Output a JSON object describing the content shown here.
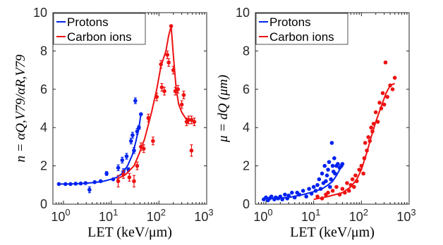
{
  "colors": {
    "protons": "#0022ee",
    "carbon": "#ee1111",
    "axis": "#262626"
  },
  "chart_data": [
    {
      "type": "scatter",
      "panel": "left",
      "xscale": "log",
      "xlim": [
        0.6,
        1000
      ],
      "ylim": [
        0,
        10
      ],
      "xticks": [
        1,
        10,
        100,
        1000
      ],
      "xtick_labels": [
        {
          "base": "10",
          "exp": "0"
        },
        {
          "base": "10",
          "exp": "1"
        },
        {
          "base": "10",
          "exp": "2"
        },
        {
          "base": "10",
          "exp": "3"
        }
      ],
      "yticks": [
        0,
        2,
        4,
        6,
        8,
        10
      ],
      "xlabel": "LET (keV/μm)",
      "ylabel": "n = αQ,V79/αR,V79",
      "legend_position": "top-left",
      "series": [
        {
          "name": "Protons",
          "color": "protons",
          "line": [
            [
              0.8,
              1.05
            ],
            [
              1.1,
              1.05
            ],
            [
              1.5,
              1.06
            ],
            [
              2,
              1.07
            ],
            [
              2.5,
              1.08
            ],
            [
              3,
              1.1
            ],
            [
              4,
              1.12
            ],
            [
              5,
              1.15
            ],
            [
              7,
              1.2
            ],
            [
              10,
              1.3
            ],
            [
              13,
              1.4
            ],
            [
              17,
              1.6
            ],
            [
              22,
              2.0
            ],
            [
              28,
              2.6
            ],
            [
              33,
              3.3
            ],
            [
              38,
              4.0
            ],
            [
              42,
              4.7
            ]
          ],
          "points": [
            [
              0.8,
              1.05,
              0
            ],
            [
              1.1,
              1.05,
              0
            ],
            [
              1.4,
              1.05,
              0
            ],
            [
              1.8,
              1.07,
              0
            ],
            [
              2.3,
              1.08,
              0
            ],
            [
              2.9,
              1.1,
              0
            ],
            [
              3.5,
              0.75,
              0.15
            ],
            [
              4.5,
              1.15,
              0
            ],
            [
              6,
              1.2,
              0
            ],
            [
              8,
              1.6,
              0.1
            ],
            [
              11,
              1.3,
              0
            ],
            [
              14,
              1.9,
              0.15
            ],
            [
              17,
              2.3,
              0.15
            ],
            [
              18,
              1.7,
              0.15
            ],
            [
              21,
              2.5,
              0.15
            ],
            [
              23,
              1.8,
              0.1
            ],
            [
              26,
              3.3,
              0.15
            ],
            [
              28,
              3.6,
              0.15
            ],
            [
              30,
              2.8,
              0.15
            ],
            [
              32,
              5.4,
              0.15
            ],
            [
              35,
              3.8,
              0.15
            ],
            [
              38,
              4.0,
              0.1
            ],
            [
              42,
              4.7,
              0
            ]
          ]
        },
        {
          "name": "Carbon ions",
          "color": "carbon",
          "line": [
            [
              13,
              1.3
            ],
            [
              20,
              1.55
            ],
            [
              30,
              2.0
            ],
            [
              38,
              2.6
            ],
            [
              50,
              3.4
            ],
            [
              70,
              4.8
            ],
            [
              90,
              6.0
            ],
            [
              110,
              7.2
            ],
            [
              140,
              8.0
            ],
            [
              160,
              8.8
            ],
            [
              180,
              9.3
            ],
            [
              200,
              7.8
            ],
            [
              230,
              6.0
            ],
            [
              260,
              5.2
            ],
            [
              300,
              4.8
            ],
            [
              380,
              4.4
            ],
            [
              480,
              4.4
            ],
            [
              560,
              4.3
            ]
          ],
          "points": [
            [
              14,
              1.2,
              0.3
            ],
            [
              18,
              1.55,
              0.2
            ],
            [
              24,
              1.4,
              0.2
            ],
            [
              30,
              1.2,
              0.3
            ],
            [
              35,
              2.0,
              0.2
            ],
            [
              42,
              3.0,
              0.2
            ],
            [
              48,
              2.9,
              0.2
            ],
            [
              60,
              4.5,
              0.2
            ],
            [
              75,
              3.3,
              0.2
            ],
            [
              90,
              5.6,
              0.2
            ],
            [
              110,
              7.3,
              0.2
            ],
            [
              115,
              6.1,
              0.2
            ],
            [
              130,
              5.9,
              0.2
            ],
            [
              150,
              7.8,
              0.2
            ],
            [
              160,
              7.4,
              0.2
            ],
            [
              180,
              9.3,
              0
            ],
            [
              200,
              7.0,
              0.2
            ],
            [
              220,
              5.9,
              0.2
            ],
            [
              250,
              6.0,
              0.2
            ],
            [
              300,
              5.2,
              0.2
            ],
            [
              330,
              5.7,
              0.2
            ],
            [
              380,
              4.3,
              0.2
            ],
            [
              420,
              4.4,
              0.2
            ],
            [
              480,
              4.4,
              0.2
            ],
            [
              480,
              2.8,
              0.3
            ],
            [
              550,
              4.3,
              0.2
            ]
          ]
        }
      ]
    },
    {
      "type": "scatter",
      "panel": "right",
      "xscale": "log",
      "xlim": [
        0.6,
        1000
      ],
      "ylim": [
        0,
        10
      ],
      "xticks": [
        1,
        10,
        100,
        1000
      ],
      "xtick_labels": [
        {
          "base": "10",
          "exp": "0"
        },
        {
          "base": "10",
          "exp": "1"
        },
        {
          "base": "10",
          "exp": "2"
        },
        {
          "base": "10",
          "exp": "3"
        }
      ],
      "yticks": [
        0,
        2,
        4,
        6,
        8,
        10
      ],
      "xlabel": "LET (keV/μm)",
      "ylabel": "μ = dQ (μm)",
      "legend_position": "top-left",
      "series": [
        {
          "name": "Protons",
          "color": "protons",
          "line": [
            [
              0.9,
              0.3
            ],
            [
              1.5,
              0.3
            ],
            [
              3,
              0.35
            ],
            [
              6,
              0.5
            ],
            [
              10,
              0.65
            ],
            [
              15,
              0.8
            ],
            [
              20,
              1.0
            ],
            [
              25,
              1.2
            ],
            [
              30,
              1.5
            ],
            [
              35,
              1.8
            ],
            [
              40,
              2.0
            ]
          ],
          "points": [
            [
              0.9,
              0.25
            ],
            [
              1.0,
              0.35
            ],
            [
              1.1,
              0.2
            ],
            [
              1.2,
              0.3
            ],
            [
              1.3,
              0.4
            ],
            [
              1.5,
              0.25
            ],
            [
              1.6,
              0.35
            ],
            [
              1.8,
              0.3
            ],
            [
              2.0,
              0.4
            ],
            [
              2.2,
              0.25
            ],
            [
              2.5,
              0.5
            ],
            [
              2.8,
              0.3
            ],
            [
              3.0,
              0.45
            ],
            [
              3.5,
              0.6
            ],
            [
              4,
              0.35
            ],
            [
              4.5,
              0.6
            ],
            [
              5,
              0.5
            ],
            [
              6,
              0.7
            ],
            [
              7,
              0.4
            ],
            [
              8,
              0.8
            ],
            [
              9,
              0.55
            ],
            [
              10,
              0.9
            ],
            [
              11,
              0.7
            ],
            [
              12,
              1.0
            ],
            [
              13,
              1.3
            ],
            [
              14,
              0.8
            ],
            [
              15,
              1.6
            ],
            [
              16,
              1.1
            ],
            [
              17,
              2.0
            ],
            [
              18,
              1.2
            ],
            [
              19,
              1.5
            ],
            [
              20,
              1.8
            ],
            [
              21,
              2.2
            ],
            [
              22,
              0.9
            ],
            [
              23,
              1.3
            ],
            [
              24,
              3.2
            ],
            [
              25,
              2.0
            ],
            [
              26,
              1.7
            ],
            [
              27,
              2.4
            ],
            [
              28,
              1.6
            ],
            [
              30,
              2.0
            ],
            [
              32,
              2.1
            ],
            [
              35,
              1.9
            ],
            [
              38,
              2.0
            ],
            [
              40,
              2.1
            ]
          ]
        },
        {
          "name": "Carbon ions",
          "color": "carbon",
          "line": [
            [
              10,
              0.25
            ],
            [
              20,
              0.4
            ],
            [
              40,
              0.6
            ],
            [
              60,
              0.9
            ],
            [
              80,
              1.3
            ],
            [
              100,
              1.8
            ],
            [
              130,
              2.7
            ],
            [
              160,
              3.5
            ],
            [
              200,
              4.3
            ],
            [
              260,
              5.1
            ],
            [
              330,
              5.8
            ],
            [
              400,
              6.2
            ],
            [
              500,
              6.3
            ]
          ],
          "points": [
            [
              12,
              0.4
            ],
            [
              15,
              0.3
            ],
            [
              18,
              0.5
            ],
            [
              20,
              0.6
            ],
            [
              25,
              0.7
            ],
            [
              30,
              0.9
            ],
            [
              35,
              0.5
            ],
            [
              40,
              0.8
            ],
            [
              45,
              0.6
            ],
            [
              50,
              1.1
            ],
            [
              55,
              0.7
            ],
            [
              60,
              1.0
            ],
            [
              65,
              1.3
            ],
            [
              70,
              0.9
            ],
            [
              75,
              1.5
            ],
            [
              80,
              1.2
            ],
            [
              90,
              1.8
            ],
            [
              100,
              2.0
            ],
            [
              110,
              1.6
            ],
            [
              115,
              2.4
            ],
            [
              120,
              3.2
            ],
            [
              130,
              2.8
            ],
            [
              140,
              3.5
            ],
            [
              150,
              3.3
            ],
            [
              160,
              4.0
            ],
            [
              170,
              3.8
            ],
            [
              180,
              4.2
            ],
            [
              200,
              4.8
            ],
            [
              220,
              4.3
            ],
            [
              240,
              5.3
            ],
            [
              260,
              5.0
            ],
            [
              280,
              5.8
            ],
            [
              300,
              5.2
            ],
            [
              320,
              7.4
            ],
            [
              350,
              5.6
            ],
            [
              400,
              6.2
            ],
            [
              450,
              6.0
            ],
            [
              500,
              6.6
            ]
          ]
        }
      ]
    }
  ]
}
